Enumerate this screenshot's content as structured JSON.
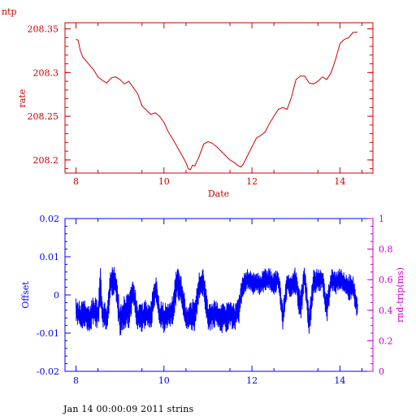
{
  "page_title": "ntp",
  "footer": "Jan 14 00:00:09 2011 strins",
  "colors": {
    "top": "#cc0000",
    "offset": "#0000ff",
    "roundtrip": "#cc00cc",
    "text": "#000000"
  },
  "chart_data": [
    {
      "type": "line",
      "title": "",
      "xlabel": "Date",
      "ylabel": "rate",
      "xlim": [
        7.75,
        14.75
      ],
      "ylim": [
        208.185,
        208.357
      ],
      "x_ticks": [
        "8",
        "10",
        "12",
        "14"
      ],
      "x_tick_values": [
        8,
        10,
        12,
        14
      ],
      "y_ticks": [
        "208.2",
        "208.25",
        "208.3",
        "208.35"
      ],
      "y_tick_values": [
        208.2,
        208.25,
        208.3,
        208.35
      ],
      "series": [
        {
          "x": [
            8.0,
            8.05,
            8.1,
            8.15,
            8.2,
            8.3,
            8.4,
            8.5,
            8.6,
            8.7,
            8.8,
            8.9,
            9.0,
            9.1,
            9.2,
            9.3,
            9.4,
            9.5,
            9.6,
            9.7,
            9.8,
            9.9,
            10.0,
            10.1,
            10.2,
            10.3,
            10.4,
            10.5,
            10.55,
            10.6,
            10.65,
            10.7,
            10.8,
            10.9,
            11.0,
            11.1,
            11.2,
            11.3,
            11.4,
            11.5,
            11.6,
            11.7,
            11.75,
            11.8,
            11.9,
            12.0,
            12.1,
            12.2,
            12.3,
            12.4,
            12.5,
            12.6,
            12.7,
            12.8,
            12.9,
            13.0,
            13.1,
            13.2,
            13.3,
            13.4,
            13.5,
            13.6,
            13.7,
            13.8,
            13.9,
            14.0,
            14.1,
            14.2,
            14.3,
            14.4
          ],
          "values": [
            208.338,
            208.337,
            208.325,
            208.318,
            208.315,
            208.309,
            208.303,
            208.295,
            208.291,
            208.288,
            208.294,
            208.295,
            208.292,
            208.287,
            208.29,
            208.283,
            208.276,
            208.262,
            208.257,
            208.252,
            208.254,
            208.25,
            208.243,
            208.232,
            208.224,
            208.215,
            208.206,
            208.197,
            208.19,
            208.189,
            208.194,
            208.193,
            208.204,
            208.218,
            208.221,
            208.219,
            208.215,
            208.21,
            208.205,
            208.2,
            208.197,
            208.193,
            208.192,
            208.195,
            208.205,
            208.215,
            208.225,
            208.228,
            208.232,
            208.242,
            208.25,
            208.258,
            208.26,
            208.258,
            208.272,
            208.292,
            208.296,
            208.296,
            208.288,
            208.287,
            208.29,
            208.295,
            208.292,
            208.3,
            208.315,
            208.333,
            208.338,
            208.34,
            208.346,
            208.346
          ]
        }
      ]
    },
    {
      "type": "line",
      "title": "",
      "xlabel": "",
      "ylabel": "Offset",
      "y2label": "rnd-trip(ms)",
      "xlim": [
        7.75,
        14.75
      ],
      "ylim": [
        -0.02,
        0.02
      ],
      "y2lim": [
        0,
        1
      ],
      "x_ticks": [
        "8",
        "10",
        "12",
        "14"
      ],
      "x_tick_values": [
        8,
        10,
        12,
        14
      ],
      "y_ticks": [
        "-0.02",
        "-0.01",
        "0",
        "0.01",
        "0.02"
      ],
      "y_tick_values": [
        -0.02,
        -0.01,
        0,
        0.01,
        0.02
      ],
      "y2_ticks": [
        "0",
        "0.2",
        "0.4",
        "0.6",
        "0.8",
        "1"
      ],
      "y2_tick_values": [
        0,
        0.2,
        0.4,
        0.6,
        0.8,
        1
      ],
      "series": [
        {
          "x": [
            8.0,
            8.1,
            8.2,
            8.3,
            8.4,
            8.5,
            8.55,
            8.6,
            8.7,
            8.8,
            8.9,
            9.0,
            9.1,
            9.2,
            9.3,
            9.4,
            9.5,
            9.6,
            9.7,
            9.8,
            9.9,
            10.0,
            10.1,
            10.2,
            10.3,
            10.4,
            10.5,
            10.6,
            10.7,
            10.8,
            10.9,
            11.0,
            11.1,
            11.2,
            11.3,
            11.4,
            11.5,
            11.6,
            11.7,
            11.8,
            11.9,
            12.0,
            12.1,
            12.2,
            12.3,
            12.4,
            12.5,
            12.6,
            12.7,
            12.8,
            12.9,
            13.0,
            13.1,
            13.2,
            13.3,
            13.4,
            13.5,
            13.6,
            13.7,
            13.8,
            13.9,
            14.0,
            14.1,
            14.2,
            14.3,
            14.4
          ],
          "values": [
            -0.004,
            -0.006,
            -0.005,
            -0.006,
            -0.004,
            -0.005,
            0.002,
            -0.005,
            -0.006,
            0.004,
            0.003,
            -0.007,
            -0.004,
            -0.004,
            0.001,
            -0.006,
            -0.006,
            -0.005,
            -0.006,
            0.002,
            -0.005,
            -0.006,
            -0.005,
            -0.004,
            0.004,
            0.001,
            -0.006,
            -0.006,
            -0.005,
            0.002,
            0.003,
            -0.006,
            -0.005,
            -0.005,
            -0.006,
            -0.006,
            -0.005,
            -0.006,
            -0.004,
            0.003,
            0.004,
            0.003,
            0.003,
            0.003,
            0.004,
            0.004,
            0.003,
            0.004,
            -0.006,
            0.003,
            0.002,
            0.004,
            -0.003,
            0.005,
            -0.008,
            0.003,
            0.004,
            0.004,
            -0.004,
            0.004,
            0.003,
            0.004,
            0.003,
            0.002,
            0.002,
            -0.004
          ],
          "spread": [
            0.004,
            0.004,
            0.004,
            0.004,
            0.004,
            0.004,
            0.006,
            0.004,
            0.004,
            0.004,
            0.004,
            0.004,
            0.005,
            0.005,
            0.004,
            0.004,
            0.004,
            0.004,
            0.004,
            0.004,
            0.004,
            0.004,
            0.004,
            0.004,
            0.005,
            0.004,
            0.004,
            0.004,
            0.005,
            0.004,
            0.004,
            0.004,
            0.004,
            0.004,
            0.004,
            0.004,
            0.004,
            0.004,
            0.004,
            0.003,
            0.003,
            0.003,
            0.003,
            0.003,
            0.003,
            0.003,
            0.003,
            0.003,
            0.004,
            0.003,
            0.003,
            0.004,
            0.005,
            0.003,
            0.004,
            0.004,
            0.003,
            0.003,
            0.004,
            0.003,
            0.003,
            0.003,
            0.003,
            0.004,
            0.003,
            0.003
          ]
        }
      ]
    }
  ]
}
